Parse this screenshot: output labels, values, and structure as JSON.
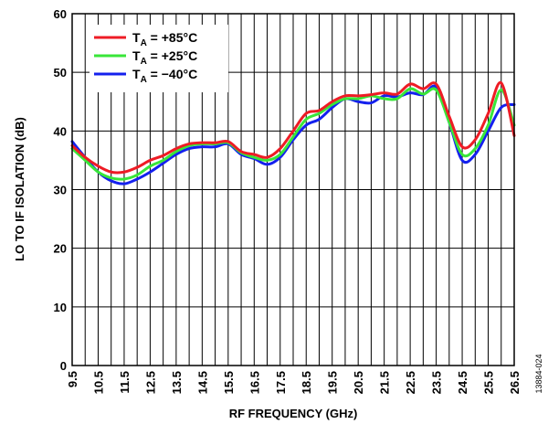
{
  "chart_data": {
    "type": "line",
    "title": "",
    "xlabel": "RF FREQUENCY (GHz)",
    "ylabel": "LO TO IF ISOLATION (dB)",
    "xlim": [
      9.5,
      26.5
    ],
    "ylim": [
      0,
      60
    ],
    "grid": true,
    "legend_position": "top-left",
    "x_ticks": [
      "9.5",
      "10.5",
      "11.5",
      "12.5",
      "13.5",
      "14.5",
      "15.5",
      "16.5",
      "17.5",
      "18.5",
      "19.5",
      "20.5",
      "21.5",
      "22.5",
      "23.5",
      "24.5",
      "25.5",
      "26.5"
    ],
    "y_ticks": [
      "0",
      "10",
      "20",
      "30",
      "40",
      "50",
      "60"
    ],
    "x": [
      9.5,
      10.0,
      10.5,
      11.0,
      11.5,
      12.0,
      12.5,
      13.0,
      13.5,
      14.0,
      14.5,
      15.0,
      15.5,
      16.0,
      16.5,
      17.0,
      17.5,
      18.0,
      18.5,
      19.0,
      19.5,
      20.0,
      20.5,
      21.0,
      21.5,
      22.0,
      22.5,
      23.0,
      23.5,
      24.0,
      24.5,
      25.0,
      25.5,
      26.0,
      26.5
    ],
    "series": [
      {
        "name": "+85°C",
        "color": "#ee1c25",
        "values": [
          37.5,
          35.5,
          34.0,
          33.0,
          33.0,
          33.8,
          35.0,
          35.8,
          37.0,
          37.8,
          38.0,
          38.0,
          38.2,
          36.5,
          36.0,
          35.5,
          37.0,
          40.0,
          43.0,
          43.5,
          45.0,
          46.0,
          46.0,
          46.2,
          46.5,
          46.3,
          48.0,
          47.2,
          48.0,
          42.5,
          37.3,
          38.5,
          43.0,
          48.2,
          39.2
        ]
      },
      {
        "name": "+25°C",
        "color": "#39e639",
        "values": [
          37.0,
          35.0,
          33.0,
          32.0,
          31.8,
          32.5,
          34.0,
          35.0,
          36.5,
          37.5,
          37.8,
          37.8,
          38.0,
          36.3,
          35.5,
          35.0,
          36.0,
          39.0,
          42.0,
          43.0,
          44.5,
          45.5,
          45.5,
          46.0,
          45.5,
          45.5,
          47.2,
          46.3,
          47.0,
          41.5,
          36.0,
          37.0,
          41.0,
          47.0,
          41.0
        ]
      },
      {
        "name": "−40°C",
        "color": "#1420ee",
        "values": [
          38.2,
          35.5,
          33.0,
          31.5,
          31.0,
          31.8,
          33.0,
          34.5,
          36.0,
          37.0,
          37.3,
          37.3,
          37.8,
          36.0,
          35.3,
          34.3,
          35.5,
          38.5,
          41.0,
          42.0,
          44.0,
          45.5,
          45.0,
          44.8,
          46.0,
          45.8,
          46.5,
          46.2,
          47.5,
          41.5,
          35.0,
          36.0,
          40.0,
          44.0,
          44.5
        ]
      }
    ]
  },
  "legend": {
    "prefix": "T",
    "subscript": "A",
    "items": [
      " = +85°C",
      " = +25°C",
      " = −40°C"
    ]
  },
  "figure_id": "13884-024"
}
